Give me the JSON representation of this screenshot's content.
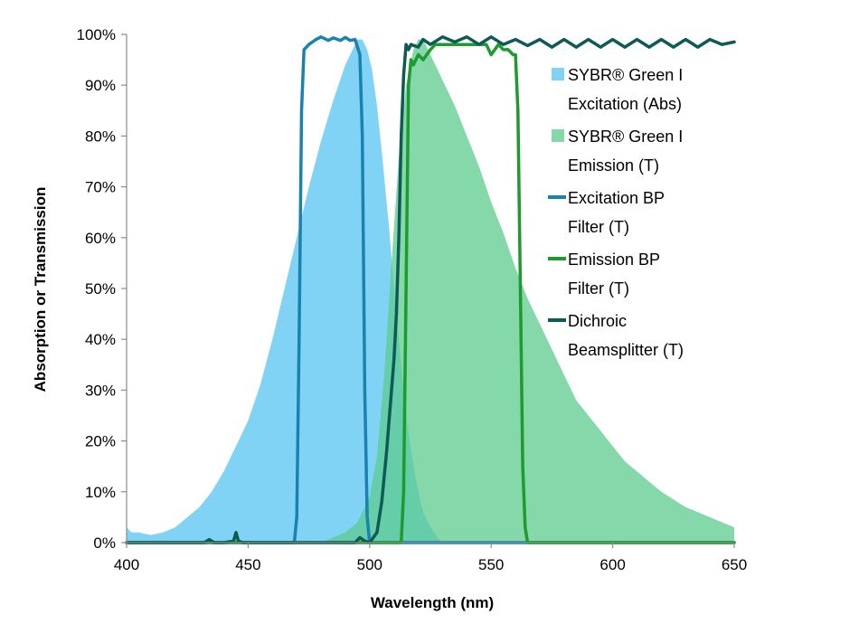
{
  "chart_data": {
    "type": "area",
    "title": "",
    "xlabel": "Wavelength (nm)",
    "ylabel": "Absorption or Transmission",
    "xlim": [
      400,
      650
    ],
    "ylim": [
      0,
      100
    ],
    "x_ticks": [
      400,
      450,
      500,
      550,
      600,
      650
    ],
    "x_tick_labels": [
      "400",
      "450",
      "500",
      "550",
      "600",
      "650"
    ],
    "y_ticks": [
      0,
      10,
      20,
      30,
      40,
      50,
      60,
      70,
      80,
      90,
      100
    ],
    "y_tick_labels": [
      "0%",
      "10%",
      "20%",
      "30%",
      "40%",
      "50%",
      "60%",
      "70%",
      "80%",
      "90%",
      "100%"
    ],
    "grid": false,
    "legend_position": "right",
    "series": [
      {
        "name": "SYBR® Green I Excitation (Abs)",
        "legend_lines": [
          "SYBR® Green I",
          "Excitation (Abs)"
        ],
        "kind": "area",
        "color": "#73CEF4",
        "opacity": 0.9,
        "x": [
          400,
          402,
          405,
          410,
          415,
          420,
          425,
          430,
          435,
          440,
          445,
          450,
          455,
          460,
          465,
          470,
          475,
          480,
          485,
          490,
          493,
          495,
          497,
          499,
          501,
          503,
          505,
          508,
          510,
          513,
          515,
          518,
          520,
          522,
          525,
          528,
          530
        ],
        "y": [
          3,
          2,
          2,
          1.5,
          2,
          3,
          5,
          7,
          10,
          14,
          19,
          24,
          31,
          40,
          50,
          60,
          70,
          79,
          87,
          94,
          97,
          99,
          99,
          97,
          93,
          86,
          77,
          62,
          50,
          35,
          25,
          15,
          10,
          6,
          3,
          1,
          0
        ]
      },
      {
        "name": "SYBR® Green I Emission (T)",
        "legend_lines": [
          "SYBR® Green I",
          "Emission (T)"
        ],
        "kind": "area",
        "color": "#5CCB8C",
        "opacity": 0.75,
        "x": [
          480,
          485,
          490,
          495,
          500,
          503,
          506,
          509,
          512,
          515,
          518,
          520,
          522,
          524,
          526,
          528,
          530,
          535,
          540,
          545,
          550,
          555,
          560,
          565,
          570,
          575,
          580,
          585,
          590,
          595,
          600,
          605,
          610,
          615,
          620,
          625,
          630,
          635,
          640,
          645,
          650
        ],
        "y": [
          0,
          1,
          2,
          4,
          9,
          17,
          33,
          55,
          76,
          90,
          97,
          99,
          99,
          97,
          95,
          93,
          91,
          86,
          80,
          74,
          67,
          61,
          54,
          48,
          43,
          38,
          33,
          28,
          25,
          22,
          19,
          16,
          14,
          12,
          10,
          8.5,
          7,
          6,
          5,
          4,
          3
        ]
      },
      {
        "name": "Excitation BP Filter (T)",
        "legend_lines": [
          "Excitation BP",
          "Filter (T)"
        ],
        "kind": "line",
        "color": "#1A82AE",
        "x": [
          400,
          469,
          470,
          471,
          472,
          473,
          475,
          478,
          480,
          483,
          485,
          488,
          490,
          492,
          494,
          496,
          497,
          498,
          499,
          500,
          650
        ],
        "y": [
          0,
          0,
          5,
          40,
          85,
          97,
          98,
          99,
          99.5,
          98.8,
          99.3,
          98.8,
          99.4,
          98.8,
          99,
          96,
          80,
          30,
          5,
          0,
          0
        ]
      },
      {
        "name": "Emission BP Filter (T)",
        "legend_lines": [
          "Emission BP",
          "Filter (T)"
        ],
        "kind": "line",
        "color": "#1E9A2E",
        "x": [
          400,
          513,
          514,
          515,
          516,
          517,
          518,
          520,
          522,
          525,
          527,
          530,
          535,
          540,
          545,
          548,
          550,
          553,
          555,
          557,
          559,
          560,
          561,
          562,
          563,
          564,
          565,
          650
        ],
        "y": [
          0,
          0,
          10,
          50,
          90,
          95,
          94,
          96,
          95,
          97,
          98,
          98,
          98,
          98,
          98,
          98,
          96,
          98,
          97,
          97,
          96,
          96,
          85,
          50,
          15,
          3,
          0,
          0
        ]
      },
      {
        "name": "Dichroic Beamsplitter (T)",
        "legend_lines": [
          "Dichroic",
          "Beamsplitter (T)"
        ],
        "kind": "line",
        "color": "#0E5A55",
        "x": [
          400,
          432,
          434,
          436,
          440,
          444,
          445,
          446,
          448,
          460,
          494,
          496,
          498,
          500,
          503,
          505,
          507,
          509,
          510,
          511,
          512,
          513,
          514,
          515,
          516,
          517,
          520,
          522,
          525,
          530,
          535,
          540,
          545,
          550,
          555,
          560,
          565,
          570,
          575,
          580,
          585,
          590,
          595,
          600,
          605,
          610,
          615,
          620,
          625,
          630,
          635,
          640,
          645,
          650
        ],
        "y": [
          0,
          0,
          0.6,
          0,
          0,
          0.3,
          2,
          0.3,
          0,
          0,
          0,
          1,
          0.3,
          0,
          2,
          8,
          18,
          30,
          36,
          45,
          60,
          80,
          92,
          98,
          97,
          98,
          97.5,
          99,
          98,
          99.5,
          98.5,
          99.5,
          98,
          99.5,
          98,
          99,
          97.8,
          99,
          97.5,
          99,
          97.5,
          99,
          97.5,
          99,
          97.5,
          99,
          97.5,
          99,
          97.5,
          99,
          97.5,
          99,
          98,
          98.5
        ]
      }
    ]
  }
}
